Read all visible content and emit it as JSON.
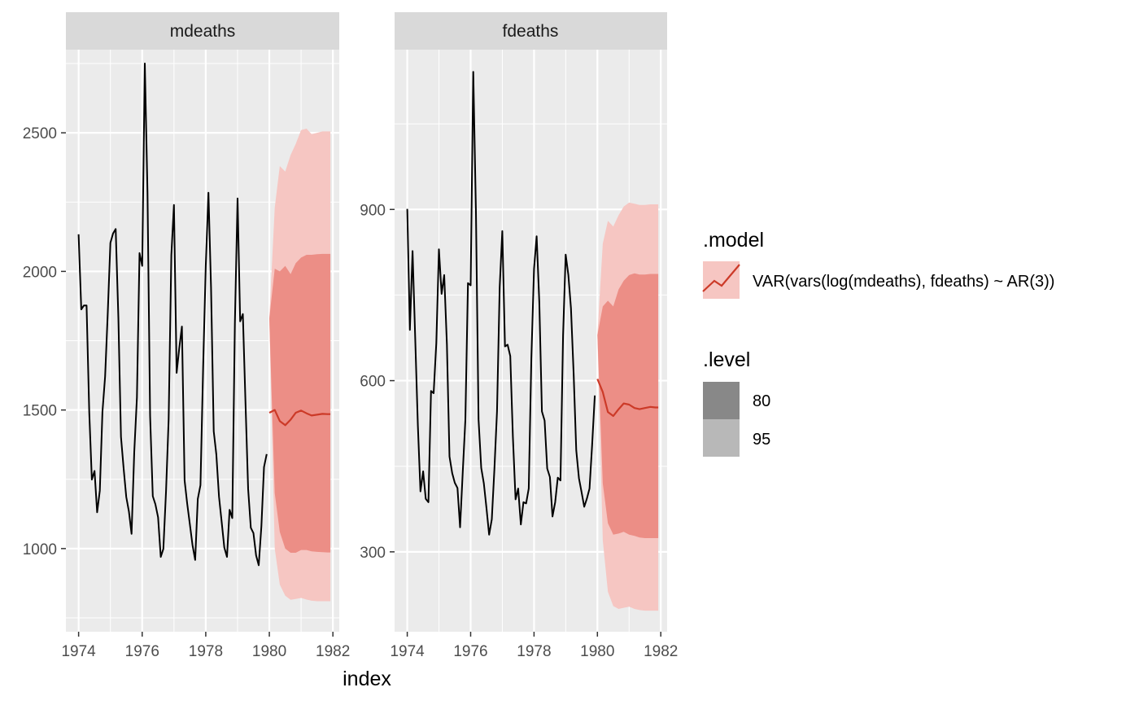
{
  "chart_data": {
    "type": "line",
    "xlabel": "index",
    "colors": {
      "history": "#000000",
      "forecast": "#cc3a28",
      "band80": "#ec8e86",
      "band95": "#f6c6c2",
      "panel": "#ebebeb",
      "strip": "#d9d9d9",
      "grid": "#ffffff",
      "legend80": "#888888",
      "legend95": "#b8b8b8"
    },
    "legend": {
      "placement": "right",
      "model_title": ".model",
      "model_label": "VAR(vars(log(mdeaths), fdeaths) ~ AR(3))",
      "level_title": ".level",
      "levels": [
        "80",
        "95"
      ]
    },
    "panels": [
      {
        "strip": "mdeaths",
        "xlim": [
          1973.6,
          1982.2
        ],
        "ylim": [
          700,
          2800
        ],
        "x_ticks": [
          1974,
          1976,
          1978,
          1980,
          1982
        ],
        "y_ticks": [
          1000,
          1500,
          2000,
          2500
        ],
        "history": {
          "start": 1974,
          "values": [
            2134,
            1863,
            1877,
            1877,
            1492,
            1249,
            1280,
            1131,
            1209,
            1492,
            1621,
            1846,
            2103,
            2137,
            2153,
            1833,
            1403,
            1288,
            1186,
            1133,
            1053,
            1347,
            1545,
            2066,
            2020,
            2750,
            2283,
            1479,
            1189,
            1160,
            1113,
            970,
            999,
            1208,
            1467,
            2059,
            2240,
            1634,
            1722,
            1801,
            1246,
            1162,
            1087,
            1013,
            959,
            1179,
            1229,
            1655,
            2019,
            2284,
            1942,
            1423,
            1340,
            1187,
            1098,
            1004,
            970,
            1140,
            1110,
            1812,
            2263,
            1820,
            1846,
            1531,
            1215,
            1075,
            1056,
            975,
            940,
            1081,
            1294,
            1341
          ]
        },
        "forecast": {
          "x": [
            1980.0,
            1980.17,
            1980.33,
            1980.5,
            1980.67,
            1980.83,
            1981.0,
            1981.17,
            1981.33,
            1981.5,
            1981.67,
            1981.83,
            1981.92
          ],
          "mean": [
            1490,
            1500,
            1460,
            1445,
            1465,
            1490,
            1498,
            1488,
            1480,
            1483,
            1486,
            1485,
            1485
          ],
          "lo80": [
            1830,
            1200,
            1060,
            1000,
            985,
            985,
            995,
            995,
            990,
            988,
            987,
            986,
            986
          ],
          "hi80": [
            1830,
            2010,
            2000,
            2020,
            1990,
            2030,
            2050,
            2060,
            2060,
            2062,
            2063,
            2063,
            2063
          ],
          "lo95": [
            1830,
            1000,
            870,
            830,
            815,
            818,
            822,
            816,
            812,
            810,
            810,
            810,
            810
          ],
          "hi95": [
            1830,
            2230,
            2380,
            2360,
            2420,
            2460,
            2510,
            2515,
            2495,
            2500,
            2505,
            2505,
            2505
          ]
        }
      },
      {
        "strip": "fdeaths",
        "xlim": [
          1973.6,
          1982.2
        ],
        "ylim": [
          160,
          1180
        ],
        "x_ticks": [
          1974,
          1976,
          1978,
          1980,
          1982
        ],
        "y_ticks": [
          300,
          600,
          900
        ],
        "history": {
          "start": 1974,
          "values": [
            901,
            689,
            827,
            677,
            522,
            406,
            441,
            393,
            387,
            582,
            578,
            666,
            830,
            752,
            785,
            664,
            467,
            438,
            421,
            412,
            343,
            440,
            531,
            771,
            767,
            1141,
            896,
            532,
            447,
            420,
            376,
            330,
            357,
            445,
            546,
            764,
            862,
            660,
            663,
            643,
            502,
            392,
            411,
            348,
            387,
            385,
            411,
            638,
            796,
            853,
            737,
            546,
            530,
            446,
            431,
            362,
            387,
            430,
            425,
            679,
            821,
            785,
            727,
            612,
            478,
            429,
            405,
            379,
            393,
            411,
            487,
            574
          ]
        },
        "forecast": {
          "x": [
            1980.0,
            1980.17,
            1980.33,
            1980.5,
            1980.67,
            1980.83,
            1981.0,
            1981.17,
            1981.33,
            1981.5,
            1981.67,
            1981.83,
            1981.92
          ],
          "mean": [
            603,
            580,
            545,
            538,
            550,
            560,
            558,
            552,
            550,
            552,
            554,
            553,
            553
          ],
          "lo80": [
            680,
            420,
            350,
            330,
            332,
            335,
            330,
            328,
            325,
            324,
            324,
            324,
            324
          ],
          "hi80": [
            680,
            730,
            740,
            730,
            760,
            775,
            785,
            788,
            786,
            786,
            787,
            787,
            787
          ],
          "lo95": [
            680,
            320,
            230,
            205,
            200,
            202,
            204,
            200,
            198,
            197,
            197,
            197,
            197
          ],
          "hi95": [
            680,
            840,
            880,
            870,
            890,
            905,
            912,
            910,
            908,
            908,
            909,
            909,
            909
          ]
        }
      }
    ]
  }
}
